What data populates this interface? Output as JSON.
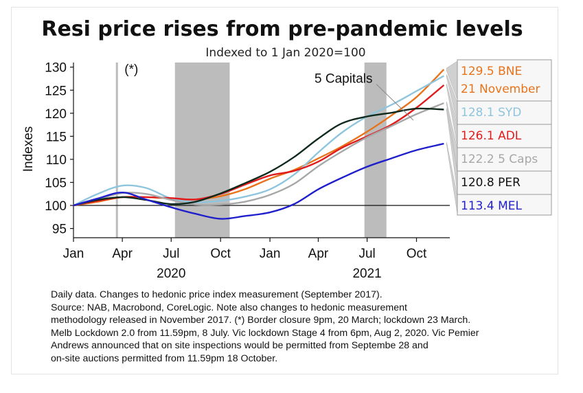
{
  "chart_data": {
    "type": "line",
    "title": "Resi price rises from pre-pandemic levels",
    "subtitle": "Indexed to 1 Jan 2020=100",
    "ylabel": "Indexes",
    "xlabel": "",
    "ylim": [
      93,
      131
    ],
    "yticks": [
      95,
      100,
      105,
      110,
      115,
      120,
      125,
      130
    ],
    "xlim": [
      "2020-01-01",
      "2021-12-02"
    ],
    "xticks": [
      {
        "label": "Jan",
        "date": "2020-01-01"
      },
      {
        "label": "Apr",
        "date": "2020-04-01"
      },
      {
        "label": "Jul",
        "date": "2020-07-01"
      },
      {
        "label": "Oct",
        "date": "2020-10-01"
      },
      {
        "label": "Jan",
        "date": "2021-01-01"
      },
      {
        "label": "Apr",
        "date": "2021-04-01"
      },
      {
        "label": "Jul",
        "date": "2021-07-01"
      },
      {
        "label": "Oct",
        "date": "2021-10-01"
      }
    ],
    "year_labels": [
      {
        "label": "2020",
        "date": "2020-07-01"
      },
      {
        "label": "2021",
        "date": "2021-07-01"
      }
    ],
    "baseline": 100,
    "shaded_periods": [
      {
        "start": "2020-03-20",
        "end": "2020-03-23"
      },
      {
        "start": "2020-07-08",
        "end": "2020-10-18"
      },
      {
        "start": "2021-06-26",
        "end": "2021-08-06"
      }
    ],
    "annotations": [
      {
        "text": "(*)",
        "date": "2020-04-05",
        "value": 129.5
      },
      {
        "text": "5 Capitals",
        "date": "2021-03-25",
        "value": 127.5,
        "arrow_to": {
          "date": "2021-09-25",
          "value": 118.5
        }
      }
    ],
    "series": [
      {
        "name": "BNE",
        "color": "#e8731a",
        "x": [
          "2020-01-01",
          "2020-02-15",
          "2020-04-01",
          "2020-05-15",
          "2020-07-01",
          "2020-08-15",
          "2020-10-01",
          "2020-11-15",
          "2021-01-01",
          "2021-02-15",
          "2021-04-01",
          "2021-05-15",
          "2021-07-01",
          "2021-08-15",
          "2021-10-01",
          "2021-11-21"
        ],
        "y": [
          100,
          100.8,
          101.8,
          101.8,
          101.5,
          101.3,
          102,
          103.5,
          105.8,
          107.7,
          110.2,
          112.8,
          116,
          119.5,
          123.5,
          129.5
        ]
      },
      {
        "name": "SYD",
        "color": "#8ec5dd",
        "x": [
          "2020-01-01",
          "2020-02-15",
          "2020-04-01",
          "2020-05-15",
          "2020-07-01",
          "2020-08-15",
          "2020-10-01",
          "2020-11-15",
          "2021-01-01",
          "2021-02-15",
          "2021-04-01",
          "2021-05-15",
          "2021-07-01",
          "2021-08-15",
          "2021-10-01",
          "2021-11-21"
        ],
        "y": [
          100,
          102.5,
          104.3,
          103.8,
          101.5,
          100.7,
          101,
          101.9,
          103.5,
          106.7,
          111.5,
          115.8,
          119.3,
          121.8,
          124.8,
          128.1
        ]
      },
      {
        "name": "ADL",
        "color": "#e11b1b",
        "x": [
          "2020-01-01",
          "2020-02-15",
          "2020-04-01",
          "2020-05-15",
          "2020-07-01",
          "2020-08-15",
          "2020-10-01",
          "2020-11-15",
          "2021-01-01",
          "2021-02-15",
          "2021-04-01",
          "2021-05-15",
          "2021-07-01",
          "2021-08-15",
          "2021-10-01",
          "2021-11-21"
        ],
        "y": [
          100,
          101,
          101.8,
          101.8,
          101.6,
          101.3,
          102.5,
          104.5,
          106.5,
          107.5,
          109.5,
          112.5,
          115,
          117.5,
          121.2,
          126.1
        ]
      },
      {
        "name": "5 Caps",
        "color": "#a7a7a7",
        "x": [
          "2020-01-01",
          "2020-02-15",
          "2020-04-01",
          "2020-05-15",
          "2020-07-01",
          "2020-08-15",
          "2020-10-01",
          "2020-11-15",
          "2021-01-01",
          "2021-02-15",
          "2021-04-01",
          "2021-05-15",
          "2021-07-01",
          "2021-08-15",
          "2021-10-01",
          "2021-11-21"
        ],
        "y": [
          100,
          101.3,
          102.7,
          102.5,
          101.2,
          100.2,
          100.2,
          100.8,
          102.3,
          104.7,
          108.5,
          111.7,
          114.8,
          117.2,
          119.8,
          122.2
        ]
      },
      {
        "name": "PER",
        "color": "#0f2a1c",
        "x": [
          "2020-01-01",
          "2020-02-15",
          "2020-04-01",
          "2020-05-15",
          "2020-07-01",
          "2020-08-15",
          "2020-10-01",
          "2020-11-15",
          "2021-01-01",
          "2021-02-15",
          "2021-04-01",
          "2021-05-15",
          "2021-07-01",
          "2021-08-15",
          "2021-10-01",
          "2021-11-21"
        ],
        "y": [
          100,
          101.2,
          101.8,
          101.2,
          100.3,
          100.8,
          102.6,
          104.8,
          107.3,
          110.5,
          114.5,
          117.8,
          119.3,
          120.1,
          121,
          120.8
        ]
      },
      {
        "name": "MEL",
        "color": "#1f1fcc",
        "x": [
          "2020-01-01",
          "2020-02-15",
          "2020-04-01",
          "2020-05-15",
          "2020-07-01",
          "2020-08-15",
          "2020-10-01",
          "2020-11-15",
          "2021-01-01",
          "2021-02-15",
          "2021-04-01",
          "2021-05-15",
          "2021-07-01",
          "2021-08-15",
          "2021-10-01",
          "2021-11-21"
        ],
        "y": [
          100,
          101.5,
          102.8,
          101.3,
          99.6,
          98.2,
          97.1,
          97.7,
          98.5,
          100.3,
          103.5,
          106,
          108.4,
          110.2,
          112,
          113.4
        ]
      }
    ],
    "legend": [
      {
        "text": "129.5 BNE",
        "text2": "21 November",
        "color": "#e8731a"
      },
      {
        "text": "128.1 SYD",
        "color": "#8ec5dd"
      },
      {
        "text": "126.1 ADL",
        "color": "#e11b1b"
      },
      {
        "text": "122.2 5 Caps",
        "color": "#a7a7a7"
      },
      {
        "text": "120.8 PER",
        "color": "#111111"
      },
      {
        "text": "113.4 MEL",
        "color": "#1f1fcc"
      }
    ]
  },
  "footnotes": [
    "Daily data. Changes to hedonic price index measurement (September 2017).",
    "Source: NAB, Macrobond, CoreLogic. Note also changes to hedonic measurement",
    "methodology released in November 2017. (*) Border closure 9pm, 20 March; lockdown 23 March.",
    "Melb Lockdown 2.0 from 11.59pm, 8 July. Vic lockdown Stage 4 from 6pm, Aug 2, 2020. Vic Pemier",
    "Andrews announced that on site inspections would be permitted from Septembe 28 and",
    "on-site auctions permitted from 11.59pm 18 October."
  ]
}
